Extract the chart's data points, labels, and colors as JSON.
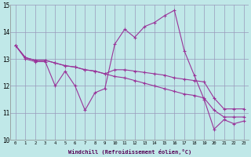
{
  "xlabel": "Windchill (Refroidissement éolien,°C)",
  "xlim": [
    -0.5,
    23.5
  ],
  "ylim": [
    10,
    15
  ],
  "xtick_labels": [
    "0",
    "1",
    "2",
    "3",
    "4",
    "5",
    "6",
    "7",
    "8",
    "9",
    "10",
    "11",
    "12",
    "13",
    "14",
    "15",
    "16",
    "17",
    "18",
    "19",
    "20",
    "21",
    "22",
    "23"
  ],
  "ytick_labels": [
    "10",
    "11",
    "12",
    "13",
    "14",
    "15"
  ],
  "ytick_vals": [
    10,
    11,
    12,
    13,
    14,
    15
  ],
  "background_color": "#c0e8e8",
  "line_color": "#993399",
  "grid_color": "#9999bb",
  "line1_y": [
    13.5,
    13.0,
    12.9,
    12.9,
    12.0,
    12.55,
    12.0,
    11.1,
    11.75,
    11.9,
    13.55,
    14.1,
    13.8,
    14.2,
    14.35,
    14.6,
    14.8,
    13.3,
    12.4,
    11.5,
    10.4,
    10.75,
    10.6,
    10.7
  ],
  "line2_y": [
    13.5,
    13.05,
    12.95,
    12.95,
    12.85,
    12.75,
    12.7,
    12.6,
    12.55,
    12.45,
    12.6,
    12.6,
    12.55,
    12.5,
    12.45,
    12.4,
    12.3,
    12.25,
    12.2,
    12.15,
    11.55,
    11.15,
    11.15,
    11.15
  ],
  "line3_y": [
    13.5,
    13.05,
    12.95,
    12.95,
    12.85,
    12.75,
    12.7,
    12.6,
    12.55,
    12.45,
    12.35,
    12.3,
    12.2,
    12.1,
    12.0,
    11.9,
    11.8,
    11.7,
    11.65,
    11.55,
    11.1,
    10.85,
    10.85,
    10.85
  ],
  "marker": "+",
  "markersize": 3,
  "linewidth": 0.8
}
